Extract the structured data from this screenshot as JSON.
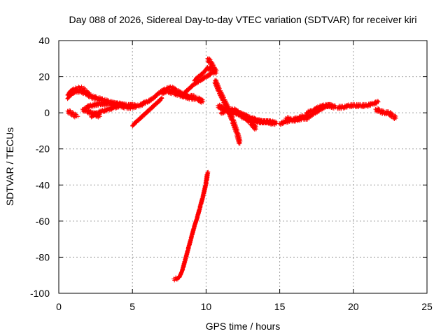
{
  "chart_data": {
    "type": "scatter",
    "title": "Day 088 of 2026, Sidereal Day-to-day VTEC variation (SDTVAR) for receiver kiri",
    "xlabel": "GPS time / hours",
    "ylabel": "SDTVAR / TECUs",
    "xlim": [
      0,
      25
    ],
    "ylim": [
      -100,
      40
    ],
    "xticks": [
      0,
      5,
      10,
      15,
      20,
      25
    ],
    "yticks": [
      -100,
      -80,
      -60,
      -40,
      -20,
      0,
      20,
      40
    ],
    "grid": true,
    "marker": "plus",
    "color": "#ff0000",
    "series": [
      {
        "x": [
          0.6,
          0.8,
          1.0,
          1.2,
          1.3
        ],
        "y": [
          1,
          0,
          -1,
          -2,
          -2
        ]
      },
      {
        "x": [
          0.6,
          0.8,
          1.0,
          1.2,
          1.4,
          1.6,
          1.8,
          2.0,
          2.2,
          2.6,
          3.0,
          3.4,
          3.8,
          4.2,
          4.6,
          5.0,
          5.4,
          5.8
        ],
        "y": [
          10,
          12,
          13,
          13.5,
          14,
          13.5,
          12,
          10,
          9,
          8,
          7,
          6,
          5,
          4,
          3,
          3,
          4,
          5
        ]
      },
      {
        "x": [
          0.6,
          0.8,
          1.0,
          1.2,
          1.5,
          1.8,
          2.1
        ],
        "y": [
          8,
          10,
          11,
          12,
          12,
          11,
          10
        ]
      },
      {
        "x": [
          1.6,
          1.9,
          2.2,
          2.5,
          2.8
        ],
        "y": [
          2,
          1,
          0,
          -1,
          -2
        ]
      },
      {
        "x": [
          2.2,
          2.6,
          3.0,
          3.4,
          3.8,
          4.2,
          4.6,
          5.0
        ],
        "y": [
          -2,
          0,
          1,
          2,
          3,
          4,
          4,
          4
        ]
      },
      {
        "x": [
          1.8,
          2.2,
          2.8,
          3.4,
          4.0,
          4.6,
          5.2
        ],
        "y": [
          3,
          4,
          5,
          5,
          5,
          4,
          4
        ]
      },
      {
        "x": [
          5.0,
          5.4,
          5.8,
          6.2,
          6.6,
          7.0
        ],
        "y": [
          -7,
          -4,
          -1,
          2,
          5,
          8
        ]
      },
      {
        "x": [
          5.6,
          6.0,
          6.4,
          6.8,
          7.2,
          7.6,
          8.0,
          8.4,
          8.8,
          9.2
        ],
        "y": [
          5,
          6,
          8,
          11,
          13,
          14,
          12,
          10,
          9,
          9
        ]
      },
      {
        "x": [
          7.0,
          7.4,
          7.8,
          8.2,
          8.6,
          9.0,
          9.4,
          9.8
        ],
        "y": [
          11,
          12,
          11,
          10,
          9,
          8,
          8,
          6
        ]
      },
      {
        "x": [
          8.4,
          8.8,
          9.2,
          9.6,
          10.0,
          10.4
        ],
        "y": [
          10,
          13,
          16,
          18,
          20,
          22
        ]
      },
      {
        "x": [
          9.2,
          9.5,
          9.8,
          10.1,
          10.4,
          10.6
        ],
        "y": [
          18,
          20,
          22,
          25,
          24,
          22
        ]
      },
      {
        "x": [
          10.1,
          10.3,
          10.5,
          10.7
        ],
        "y": [
          30,
          28,
          25,
          22
        ]
      },
      {
        "x": [
          10.6,
          10.9,
          11.2,
          11.5,
          11.8,
          12.1,
          12.3
        ],
        "y": [
          18,
          12,
          7,
          2,
          -4,
          -11,
          -17
        ]
      },
      {
        "x": [
          10.8,
          11.2,
          11.6,
          12.0,
          12.4,
          12.8
        ],
        "y": [
          4,
          2,
          1,
          0,
          -1,
          -2
        ]
      },
      {
        "x": [
          11.0,
          11.4,
          11.8,
          12.2,
          12.6,
          13.0,
          13.4
        ],
        "y": [
          0,
          1,
          2,
          0,
          -2,
          -5,
          -9
        ]
      },
      {
        "x": [
          11.8,
          12.2,
          12.6,
          13.0,
          13.4,
          13.8,
          14.2,
          14.6
        ],
        "y": [
          1,
          0,
          -2,
          -3,
          -4,
          -5,
          -5,
          -6
        ]
      },
      {
        "x": [
          12.4,
          12.8,
          13.2,
          13.6,
          14.0,
          14.4,
          14.8
        ],
        "y": [
          -2,
          -3,
          -4,
          -5,
          -5,
          -5,
          -6
        ]
      },
      {
        "x": [
          15.0,
          15.4,
          15.8,
          16.2,
          16.6,
          17.0
        ],
        "y": [
          -6,
          -5,
          -4,
          -4,
          -3,
          -3
        ]
      },
      {
        "x": [
          15.4,
          15.8,
          16.2,
          16.6,
          17.0,
          17.4,
          17.8,
          18.2,
          18.5
        ],
        "y": [
          -3,
          -4,
          -3,
          -2,
          -2,
          0,
          2,
          4,
          4
        ]
      },
      {
        "x": [
          16.8,
          17.2,
          17.6,
          18.0,
          18.4,
          18.8
        ],
        "y": [
          0,
          1,
          3,
          4,
          4,
          3
        ]
      },
      {
        "x": [
          18.9,
          19.3,
          19.7,
          20.1,
          20.5,
          20.9,
          21.3,
          21.7
        ],
        "y": [
          3,
          3,
          4,
          4,
          4,
          4,
          5,
          6
        ]
      },
      {
        "x": [
          21.5,
          21.8,
          22.1,
          22.4,
          22.7,
          22.9
        ],
        "y": [
          2,
          1,
          0,
          0,
          -2,
          -3
        ]
      },
      {
        "x": [
          7.8,
          8.0,
          8.2,
          8.4,
          8.6,
          8.8,
          9.0,
          9.2,
          9.4,
          9.6,
          9.8,
          10.0,
          10.1
        ],
        "y": [
          -92,
          -92,
          -91,
          -87,
          -81,
          -75,
          -69,
          -63,
          -58,
          -52,
          -46,
          -39,
          -33
        ]
      }
    ]
  }
}
